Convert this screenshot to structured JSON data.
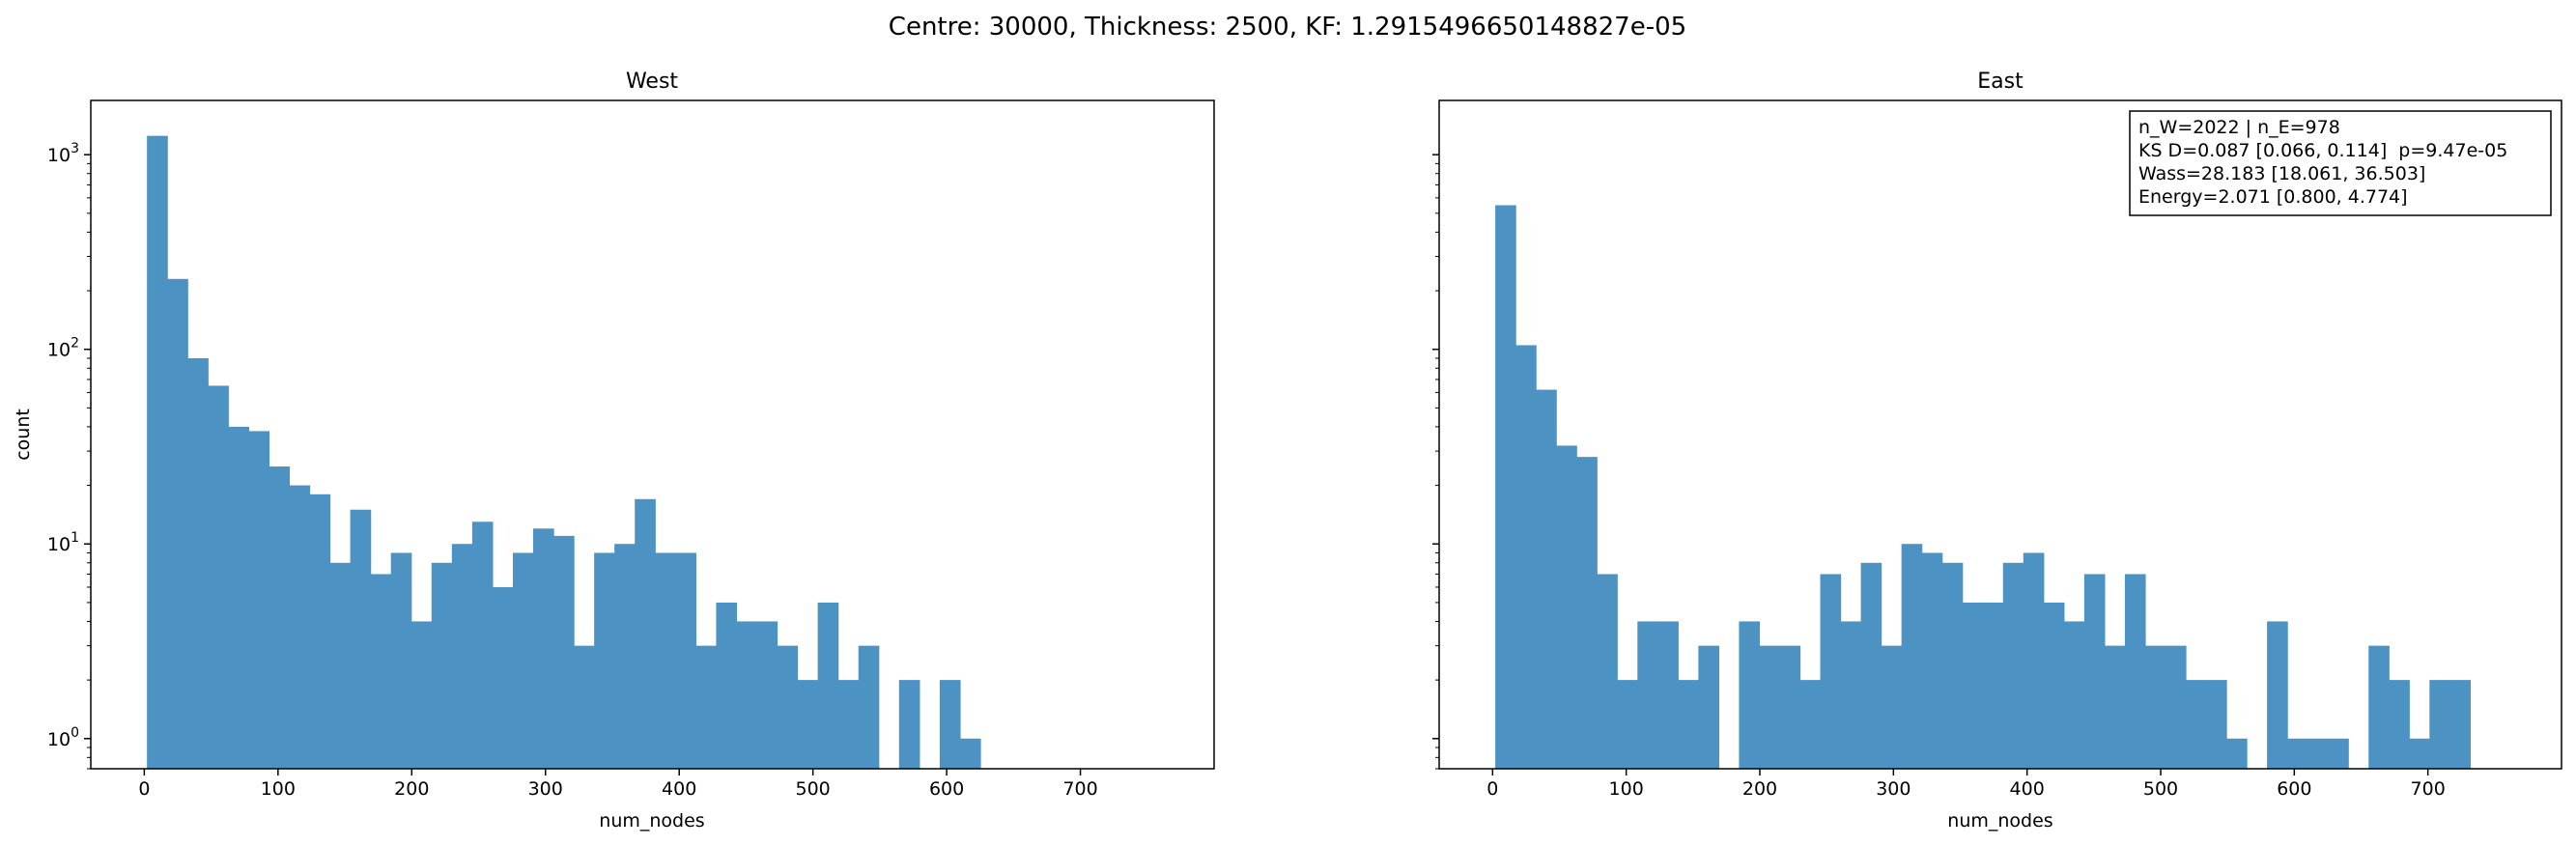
{
  "figure": {
    "suptitle": "Centre: 30000, Thickness: 2500, KF: 1.2915496650148827e-05"
  },
  "chart_data": [
    {
      "type": "bar",
      "title": "West",
      "xlabel": "num_nodes",
      "ylabel": "count",
      "yscale": "log",
      "xlim": [
        -40,
        800
      ],
      "ylim": [
        0.7,
        1900
      ],
      "xticks": [
        0,
        100,
        200,
        300,
        400,
        500,
        600,
        700
      ],
      "yticks": [
        {
          "value": 1,
          "base": "10",
          "exp": "0"
        },
        {
          "value": 10,
          "base": "10",
          "exp": "1"
        },
        {
          "value": 100,
          "base": "10",
          "exp": "2"
        },
        {
          "value": 1000,
          "base": "10",
          "exp": "3"
        }
      ],
      "bin_start": 2,
      "bin_width": 15.2,
      "color": "#4c92c3",
      "values": [
        1250,
        230,
        90,
        65,
        40,
        38,
        25,
        20,
        18,
        8,
        15,
        7,
        9,
        4,
        8,
        10,
        13,
        6,
        9,
        12,
        11,
        3,
        9,
        10,
        17,
        9,
        9,
        3,
        5,
        4,
        4,
        3,
        2,
        5,
        2,
        3,
        0,
        2,
        0,
        2,
        1
      ]
    },
    {
      "type": "bar",
      "title": "East",
      "xlabel": "num_nodes",
      "ylabel": "",
      "yscale": "log",
      "xlim": [
        -40,
        800
      ],
      "ylim": [
        0.7,
        1900
      ],
      "xticks": [
        0,
        100,
        200,
        300,
        400,
        500,
        600,
        700
      ],
      "bin_start": 2,
      "bin_width": 15.2,
      "color": "#4c92c3",
      "values": [
        550,
        105,
        62,
        32,
        28,
        7,
        2,
        4,
        4,
        2,
        3,
        0,
        4,
        3,
        3,
        2,
        7,
        4,
        8,
        3,
        10,
        9,
        8,
        5,
        5,
        8,
        9,
        5,
        4,
        7,
        3,
        7,
        3,
        3,
        2,
        2,
        1,
        0,
        4,
        1,
        1,
        1,
        0,
        3,
        2,
        1,
        2,
        2
      ],
      "annotation": [
        "n_W=2022 | n_E=978",
        "KS D=0.087 [0.066, 0.114]  p=9.47e-05",
        "Wass=28.183 [18.061, 36.503]",
        "Energy=2.071 [0.800, 4.774]"
      ]
    }
  ]
}
